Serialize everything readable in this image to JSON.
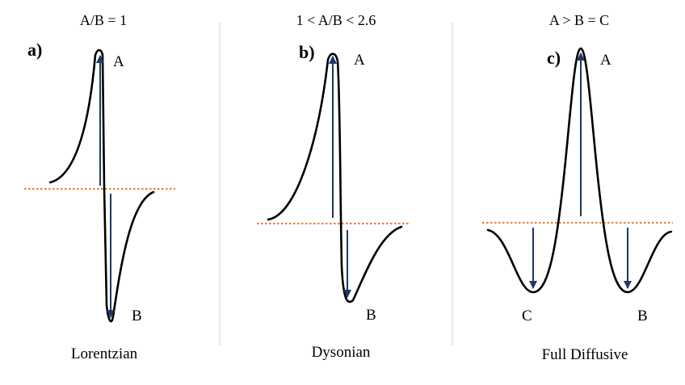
{
  "colors": {
    "curve": "#000000",
    "baseline": "#ed7d31",
    "arrow": "#1f3864",
    "divider": "#d9d9d9"
  },
  "panels": [
    {
      "ratio_label": "A/B = 1",
      "letter": "a)",
      "caption": "Lorentzian",
      "points": {
        "A": "A",
        "B": "B"
      }
    },
    {
      "ratio_label": "1 < A/B < 2.6",
      "letter": "b)",
      "caption": "Dysonian",
      "points": {
        "A": "A",
        "B": "B"
      }
    },
    {
      "ratio_label": "A > B = C",
      "letter": "c)",
      "caption": "Full Diffusive",
      "points": {
        "A": "A",
        "B": "B",
        "C": "C"
      }
    }
  ]
}
